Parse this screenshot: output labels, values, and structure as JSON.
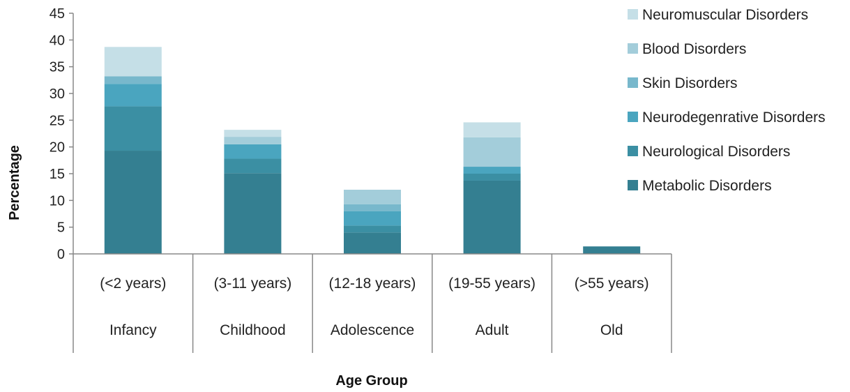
{
  "chart_data": {
    "type": "bar",
    "stacked": true,
    "categories": [
      "Infancy",
      "Childhood",
      "Adolescence",
      "Adult",
      "Old"
    ],
    "category_ranges": [
      "(<2 years)",
      "(3-11 years)",
      "(12-18 years)",
      "(19-55 years)",
      "(>55 years)"
    ],
    "series": [
      {
        "name": "Metabolic Disorders",
        "color": "#347f91",
        "values": [
          19.3,
          15.1,
          4.0,
          13.7,
          1.4
        ]
      },
      {
        "name": "Neurological Disorders",
        "color": "#3b8fa3",
        "values": [
          8.3,
          2.7,
          1.3,
          1.3,
          0
        ]
      },
      {
        "name": "Neurodegenrative Disorders",
        "color": "#4aa5bf",
        "values": [
          4.2,
          2.7,
          2.7,
          1.3,
          0
        ]
      },
      {
        "name": "Skin Disorders",
        "color": "#78b8cc",
        "values": [
          1.4,
          0,
          1.3,
          0,
          0
        ]
      },
      {
        "name": "Blood Disorders",
        "color": "#a3cdda",
        "values": [
          0,
          1.4,
          2.7,
          5.5,
          0
        ]
      },
      {
        "name": "Neuromuscular Disorders",
        "color": "#c5dfe7",
        "values": [
          5.5,
          1.3,
          0,
          2.8,
          0
        ]
      }
    ],
    "ylim": [
      0,
      45
    ],
    "yticks": [
      0,
      5,
      10,
      15,
      20,
      25,
      30,
      35,
      40,
      45
    ],
    "xlabel": "Age Group",
    "ylabel": "Percentage",
    "legend_position": "right"
  }
}
